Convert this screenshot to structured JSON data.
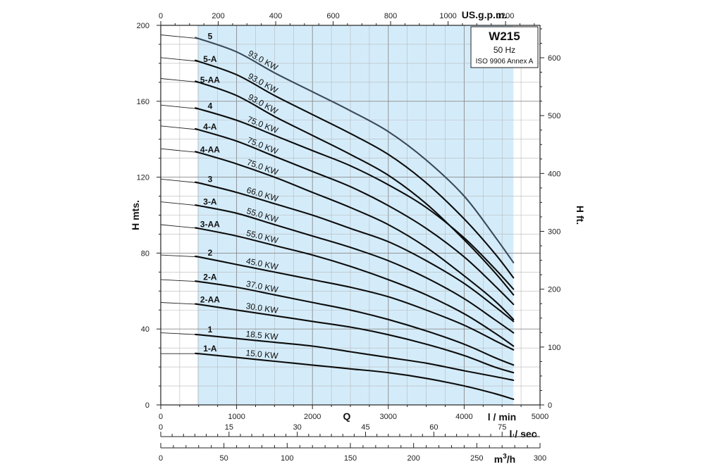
{
  "chart_data": {
    "type": "line",
    "info_box": {
      "model": "W215",
      "frequency": "50 Hz",
      "standard": "ISO 9906 Annex A"
    },
    "axes": {
      "x_bottom": {
        "title": "Q",
        "unit": "l / min",
        "range": [
          0,
          5000
        ],
        "ticks": [
          0,
          1000,
          2000,
          3000,
          4000,
          5000
        ]
      },
      "x_top": {
        "unit": "US.g.p.m.",
        "range": [
          0,
          1320
        ],
        "ticks": [
          0,
          200,
          400,
          600,
          800,
          1000,
          1200
        ]
      },
      "y_left": {
        "title": "H mts.",
        "range": [
          0,
          200
        ],
        "ticks": [
          0,
          40,
          80,
          120,
          160,
          200
        ]
      },
      "y_right": {
        "title": "H ft.",
        "range": [
          0,
          656
        ],
        "ticks": [
          0,
          100,
          200,
          300,
          400,
          500,
          600
        ]
      },
      "x_lsec": {
        "unit": "l / sec",
        "range": [
          0,
          83.33
        ],
        "ticks": [
          0,
          15,
          30,
          45,
          60,
          75
        ]
      },
      "x_m3h": {
        "unit": "m3/h",
        "range": [
          0,
          300
        ],
        "ticks": [
          0,
          50,
          100,
          150,
          200,
          250,
          300
        ]
      }
    },
    "operating_range": {
      "q_min": 480,
      "q_max": 4650
    },
    "grid": true,
    "series": [
      {
        "name": "5",
        "power": "93.0 KW",
        "label_q": 650,
        "points": [
          [
            0,
            195
          ],
          [
            500,
            193
          ],
          [
            1000,
            186
          ],
          [
            1500,
            175
          ],
          [
            2000,
            165
          ],
          [
            2500,
            155
          ],
          [
            3000,
            144
          ],
          [
            3500,
            129
          ],
          [
            4000,
            110
          ],
          [
            4400,
            89
          ],
          [
            4650,
            75
          ]
        ]
      },
      {
        "name": "5-A",
        "power": "93.0 KW",
        "label_q": 650,
        "points": [
          [
            0,
            183
          ],
          [
            500,
            181
          ],
          [
            1000,
            174
          ],
          [
            1500,
            163
          ],
          [
            2000,
            153
          ],
          [
            2500,
            143
          ],
          [
            3000,
            132
          ],
          [
            3500,
            117
          ],
          [
            4000,
            98
          ],
          [
            4400,
            80
          ],
          [
            4650,
            67
          ]
        ]
      },
      {
        "name": "5-AA",
        "power": "93.0 KW",
        "label_q": 650,
        "points": [
          [
            0,
            172
          ],
          [
            500,
            170
          ],
          [
            1000,
            163
          ],
          [
            1500,
            152
          ],
          [
            2000,
            142
          ],
          [
            2500,
            132
          ],
          [
            3000,
            121
          ],
          [
            3500,
            106
          ],
          [
            4000,
            87
          ],
          [
            4400,
            70
          ],
          [
            4650,
            58
          ]
        ]
      },
      {
        "name": "4",
        "power": "75.0 KW",
        "label_q": 650,
        "points": [
          [
            0,
            158
          ],
          [
            500,
            156
          ],
          [
            1000,
            150
          ],
          [
            1500,
            142
          ],
          [
            2000,
            134
          ],
          [
            2500,
            126
          ],
          [
            3000,
            116
          ],
          [
            3500,
            104
          ],
          [
            4000,
            88
          ],
          [
            4400,
            72
          ],
          [
            4650,
            61
          ]
        ]
      },
      {
        "name": "4-A",
        "power": "75.0 KW",
        "label_q": 650,
        "points": [
          [
            0,
            147
          ],
          [
            500,
            145
          ],
          [
            1000,
            139
          ],
          [
            1500,
            131
          ],
          [
            2000,
            123
          ],
          [
            2500,
            115
          ],
          [
            3000,
            105
          ],
          [
            3500,
            93
          ],
          [
            4000,
            78
          ],
          [
            4400,
            63
          ],
          [
            4650,
            53
          ]
        ]
      },
      {
        "name": "4-AA",
        "power": "75.0 KW",
        "label_q": 650,
        "points": [
          [
            0,
            135
          ],
          [
            500,
            133
          ],
          [
            1000,
            127
          ],
          [
            1500,
            120
          ],
          [
            2000,
            112
          ],
          [
            2500,
            104
          ],
          [
            3000,
            95
          ],
          [
            3500,
            83
          ],
          [
            4000,
            68
          ],
          [
            4400,
            55
          ],
          [
            4650,
            45
          ]
        ]
      },
      {
        "name": "3",
        "power": "66.0 KW",
        "label_q": 650,
        "points": [
          [
            0,
            119
          ],
          [
            500,
            117
          ],
          [
            1000,
            112
          ],
          [
            1500,
            106
          ],
          [
            2000,
            100
          ],
          [
            2500,
            93
          ],
          [
            3000,
            86
          ],
          [
            3500,
            76
          ],
          [
            4000,
            64
          ],
          [
            4400,
            52
          ],
          [
            4650,
            44
          ]
        ]
      },
      {
        "name": "3-A",
        "power": "55.0 KW",
        "label_q": 650,
        "points": [
          [
            0,
            107
          ],
          [
            500,
            105
          ],
          [
            1000,
            101
          ],
          [
            1500,
            95
          ],
          [
            2000,
            89
          ],
          [
            2500,
            83
          ],
          [
            3000,
            76
          ],
          [
            3500,
            67
          ],
          [
            4000,
            56
          ],
          [
            4400,
            45
          ],
          [
            4650,
            38
          ]
        ]
      },
      {
        "name": "3-AA",
        "power": "55.0 KW",
        "label_q": 650,
        "points": [
          [
            0,
            95
          ],
          [
            500,
            93
          ],
          [
            1000,
            89
          ],
          [
            1500,
            84
          ],
          [
            2000,
            79
          ],
          [
            2500,
            73
          ],
          [
            3000,
            66
          ],
          [
            3500,
            58
          ],
          [
            4000,
            48
          ],
          [
            4400,
            38
          ],
          [
            4650,
            31
          ]
        ]
      },
      {
        "name": "2",
        "power": "45.0 KW",
        "label_q": 650,
        "points": [
          [
            0,
            79
          ],
          [
            500,
            78
          ],
          [
            1000,
            74
          ],
          [
            1500,
            70
          ],
          [
            2000,
            66
          ],
          [
            2500,
            62
          ],
          [
            3000,
            57
          ],
          [
            3500,
            50
          ],
          [
            4000,
            42
          ],
          [
            4400,
            34
          ],
          [
            4650,
            29
          ]
        ]
      },
      {
        "name": "2-A",
        "power": "37.0 KW",
        "label_q": 650,
        "points": [
          [
            0,
            66
          ],
          [
            500,
            65
          ],
          [
            1000,
            62
          ],
          [
            1500,
            58
          ],
          [
            2000,
            54
          ],
          [
            2500,
            50
          ],
          [
            3000,
            45
          ],
          [
            3500,
            39
          ],
          [
            4000,
            32
          ],
          [
            4400,
            25
          ],
          [
            4650,
            21
          ]
        ]
      },
      {
        "name": "2-AA",
        "power": "30.0 KW",
        "label_q": 650,
        "points": [
          [
            0,
            54
          ],
          [
            500,
            53
          ],
          [
            1000,
            50
          ],
          [
            1500,
            47
          ],
          [
            2000,
            44
          ],
          [
            2500,
            41
          ],
          [
            3000,
            37
          ],
          [
            3500,
            32
          ],
          [
            4000,
            26
          ],
          [
            4400,
            20
          ],
          [
            4650,
            17
          ]
        ]
      },
      {
        "name": "1",
        "power": "18.5 KW",
        "label_q": 650,
        "points": [
          [
            0,
            38
          ],
          [
            500,
            37
          ],
          [
            1000,
            35
          ],
          [
            1500,
            33
          ],
          [
            2000,
            31
          ],
          [
            2500,
            28
          ],
          [
            3000,
            25
          ],
          [
            3500,
            22
          ],
          [
            4000,
            18
          ],
          [
            4400,
            15
          ],
          [
            4650,
            13
          ]
        ]
      },
      {
        "name": "1-A",
        "power": "15.0 KW",
        "label_q": 650,
        "points": [
          [
            0,
            27
          ],
          [
            500,
            27
          ],
          [
            1000,
            25
          ],
          [
            1500,
            23
          ],
          [
            2000,
            21
          ],
          [
            2500,
            19
          ],
          [
            3000,
            17
          ],
          [
            3500,
            14
          ],
          [
            4000,
            10
          ],
          [
            4400,
            6
          ],
          [
            4650,
            3
          ]
        ]
      }
    ]
  }
}
